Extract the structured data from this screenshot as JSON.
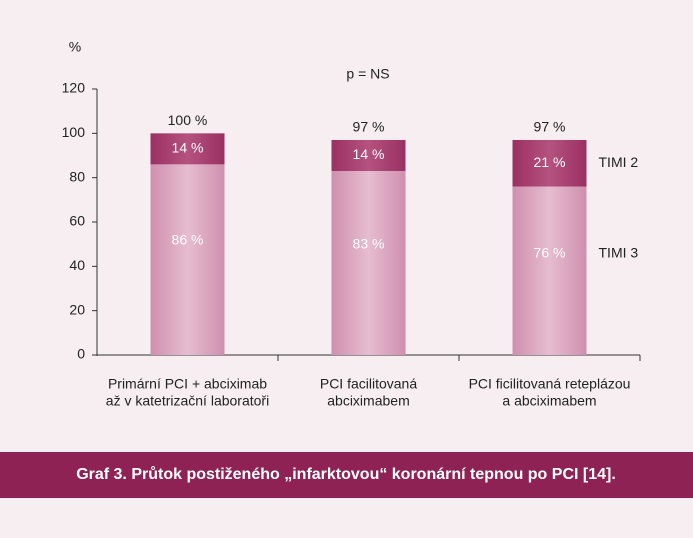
{
  "chart_data": {
    "type": "stacked-bar",
    "y_unit": "%",
    "annotation": "p = NS",
    "categories": [
      [
        "Primární PCI + abciximab",
        "až v katetrizační laboratoři"
      ],
      [
        "PCI facilitovaná",
        "abciximabem"
      ],
      [
        "PCI ficilitovaná reteplázou",
        "a abciximabem"
      ]
    ],
    "series": [
      {
        "name": "TIMI 3",
        "color": "#d9a3be",
        "values": [
          86,
          83,
          76
        ],
        "value_labels": [
          "86 %",
          "83 %",
          "76 %"
        ]
      },
      {
        "name": "TIMI 2",
        "color": "#a8406f",
        "values": [
          14,
          14,
          21
        ],
        "value_labels": [
          "14 %",
          "14 %",
          "21 %"
        ]
      }
    ],
    "totals": {
      "values": [
        100,
        97,
        97
      ],
      "value_labels": [
        "100 %",
        "97 %",
        "97 %"
      ]
    },
    "ylim": [
      0,
      120
    ],
    "yticks": [
      0,
      20,
      40,
      60,
      80,
      100,
      120
    ],
    "caption": "Graf 3. Průtok postiženého „infarktovou“ koronární tepnou po PCI [14]."
  }
}
